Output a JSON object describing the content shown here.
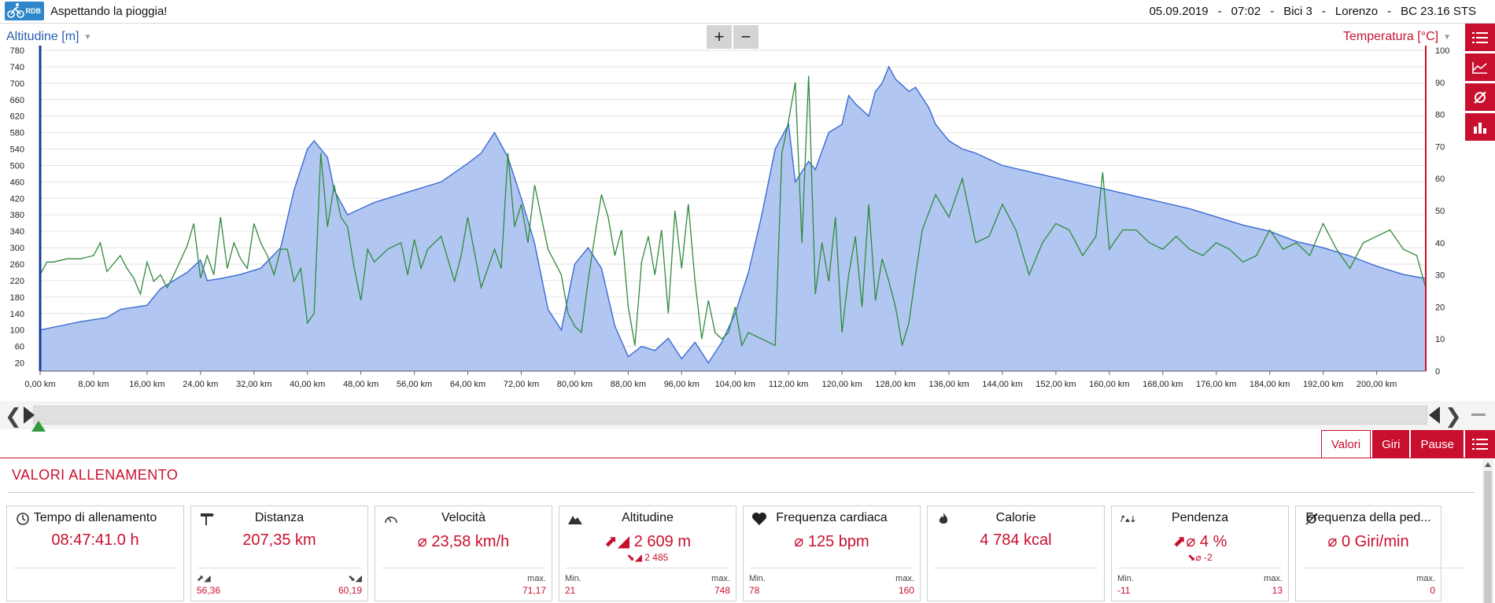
{
  "app": {
    "logo_text": "RDB",
    "title": "Aspettando la pioggia!",
    "session": {
      "date": "05.09.2019",
      "time": "07:02",
      "bike": "Bici 3",
      "user": "Lorenzo",
      "device": "BC 23.16 STS",
      "separator": "-"
    }
  },
  "chart": {
    "left_axis_title": "Altitudine [m]",
    "right_axis_title": "Temperatura [°C]",
    "zoom_in_label": "+",
    "zoom_out_label": "−",
    "colors": {
      "altitude_fill": "#a9c1f0",
      "altitude_line": "#3a6ad4",
      "temperature_line": "#2f8a3c",
      "left_axis": "#1a3c9c",
      "right_axis": "#c8102e"
    },
    "side_tools": [
      "list-icon",
      "line-chart-icon",
      "average-icon",
      "bar-chart-icon"
    ]
  },
  "chart_data": {
    "type": "line",
    "xlabel": "",
    "x_ticks": [
      "0,00 km",
      "8,00 km",
      "16,00 km",
      "24,00 km",
      "32,00 km",
      "40,00 km",
      "48,00 km",
      "56,00 km",
      "64,00 km",
      "72,00 km",
      "80,00 km",
      "88,00 km",
      "96,00 km",
      "104,00 km",
      "112,00 km",
      "120,00 km",
      "128,00 km",
      "136,00 km",
      "144,00 km",
      "152,00 km",
      "160,00 km",
      "168,00 km",
      "176,00 km",
      "184,00 km",
      "192,00 km",
      "200,00 km"
    ],
    "x_range": [
      0,
      207.35
    ],
    "y_left_ticks": [
      20,
      60,
      100,
      140,
      180,
      220,
      260,
      300,
      340,
      380,
      420,
      460,
      500,
      540,
      580,
      620,
      660,
      700,
      740,
      780
    ],
    "y_left_range": [
      0,
      780
    ],
    "y_right_ticks": [
      0,
      10,
      20,
      30,
      40,
      50,
      60,
      70,
      80,
      90,
      100
    ],
    "y_right_range": [
      0,
      100
    ],
    "grid": true,
    "series": [
      {
        "name": "Altitudine [m]",
        "axis": "left",
        "x": [
          0,
          3,
          6,
          10,
          12,
          16,
          18,
          20,
          22,
          24,
          25,
          27,
          30,
          33,
          36,
          38,
          40,
          41,
          43,
          44,
          46,
          48,
          50,
          52,
          56,
          60,
          64,
          66,
          68,
          70,
          72,
          74,
          76,
          78,
          80,
          82,
          84,
          86,
          88,
          90,
          92,
          94,
          96,
          98,
          100,
          102,
          104,
          106,
          108,
          110,
          112,
          113,
          115,
          116,
          118,
          120,
          121,
          122,
          124,
          125,
          126,
          127,
          128,
          130,
          131,
          133,
          134,
          136,
          138,
          140,
          144,
          148,
          152,
          156,
          160,
          164,
          168,
          172,
          176,
          180,
          184,
          188,
          192,
          196,
          200,
          204,
          207.35
        ],
        "y": [
          100,
          110,
          120,
          130,
          150,
          160,
          200,
          220,
          240,
          270,
          220,
          225,
          235,
          250,
          300,
          440,
          540,
          560,
          520,
          440,
          380,
          395,
          410,
          420,
          440,
          460,
          505,
          530,
          580,
          520,
          420,
          310,
          150,
          100,
          260,
          300,
          250,
          110,
          35,
          60,
          50,
          80,
          30,
          70,
          20,
          70,
          140,
          240,
          380,
          540,
          600,
          460,
          510,
          490,
          580,
          600,
          670,
          650,
          620,
          680,
          700,
          740,
          710,
          680,
          690,
          640,
          600,
          560,
          540,
          530,
          500,
          485,
          470,
          455,
          440,
          425,
          410,
          395,
          375,
          355,
          340,
          315,
          300,
          280,
          255,
          235,
          225
        ]
      },
      {
        "name": "Temperatura [°C]",
        "axis": "right",
        "x": [
          0,
          1,
          2,
          4,
          6,
          8,
          9,
          10,
          12,
          13,
          14,
          15,
          16,
          17,
          18,
          19,
          20,
          22,
          23,
          24,
          25,
          26,
          27,
          28,
          29,
          30,
          31,
          32,
          33,
          34,
          35,
          36,
          37,
          38,
          39,
          40,
          41,
          42,
          43,
          44,
          45,
          46,
          47,
          48,
          49,
          50,
          52,
          54,
          55,
          56,
          57,
          58,
          60,
          62,
          63,
          64,
          66,
          68,
          69,
          70,
          71,
          72,
          73,
          74,
          76,
          78,
          79,
          80,
          81,
          82,
          83,
          84,
          85,
          86,
          87,
          88,
          89,
          90,
          91,
          92,
          93,
          94,
          95,
          96,
          97,
          98,
          99,
          100,
          101,
          102,
          103,
          104,
          105,
          106,
          108,
          110,
          111,
          112,
          113,
          114,
          115,
          116,
          117,
          118,
          119,
          120,
          121,
          122,
          123,
          124,
          125,
          126,
          127,
          128,
          129,
          130,
          131,
          132,
          134,
          136,
          138,
          140,
          142,
          144,
          146,
          148,
          150,
          152,
          154,
          156,
          158,
          159,
          160,
          162,
          164,
          166,
          168,
          170,
          172,
          174,
          176,
          178,
          180,
          182,
          184,
          186,
          188,
          190,
          192,
          194,
          196,
          198,
          200,
          202,
          204,
          206,
          207.35
        ],
        "y": [
          30,
          34,
          34,
          35,
          35,
          36,
          40,
          31,
          36,
          32,
          29,
          24,
          34,
          28,
          30,
          26,
          30,
          39,
          46,
          29,
          36,
          30,
          48,
          32,
          40,
          35,
          32,
          46,
          40,
          36,
          30,
          38,
          38,
          28,
          32,
          15,
          18,
          68,
          45,
          58,
          48,
          45,
          32,
          22,
          38,
          34,
          38,
          40,
          30,
          41,
          32,
          38,
          42,
          28,
          36,
          48,
          26,
          38,
          32,
          68,
          45,
          52,
          40,
          58,
          38,
          30,
          18,
          14,
          12,
          28,
          42,
          55,
          48,
          36,
          44,
          20,
          8,
          34,
          42,
          30,
          44,
          18,
          50,
          32,
          52,
          28,
          10,
          22,
          12,
          10,
          12,
          20,
          8,
          12,
          10,
          8,
          68,
          78,
          90,
          40,
          92,
          24,
          40,
          28,
          48,
          12,
          30,
          42,
          20,
          52,
          22,
          35,
          28,
          20,
          8,
          15,
          30,
          44,
          55,
          48,
          60,
          40,
          42,
          52,
          44,
          30,
          40,
          46,
          44,
          36,
          42,
          62,
          38,
          44,
          44,
          40,
          38,
          42,
          38,
          36,
          40,
          38,
          34,
          36,
          44,
          38,
          40,
          36,
          46,
          38,
          32,
          40,
          42,
          44,
          38,
          36,
          26
        ]
      }
    ]
  },
  "scrubber": {
    "left_arrow": "❮",
    "right_arrow": "❯"
  },
  "tabs": [
    {
      "label": "Valori",
      "active": true
    },
    {
      "label": "Giri",
      "active": false
    },
    {
      "label": "Pause",
      "active": false
    }
  ],
  "section_title": "VALORI ALLENAMENTO",
  "cards": [
    {
      "icon": "clock-icon",
      "title": "Tempo di allenamento",
      "value": "08:47:41.0 h",
      "sub": "",
      "left_label": "",
      "left_value": "",
      "right_label": "",
      "right_value": ""
    },
    {
      "icon": "signpost-icon",
      "title": "Distanza",
      "value": "207,35 km",
      "sub": "",
      "left_label": "⬈◢",
      "left_value": "56,36",
      "right_label": "⬊◢",
      "right_value": "60,19"
    },
    {
      "icon": "speedometer-icon",
      "title": "Velocità",
      "value": "⌀ 23,58 km/h",
      "sub": "",
      "left_label": "",
      "left_value": "",
      "right_label": "max.",
      "right_value": "71,17"
    },
    {
      "icon": "mountain-icon",
      "title": "Altitudine",
      "value": "⬈◢ 2 609 m",
      "sub": "⬊◢ 2 485",
      "left_label": "Min.",
      "left_value": "21",
      "right_label": "max.",
      "right_value": "748"
    },
    {
      "icon": "heart-icon",
      "title": "Frequenza cardiaca",
      "value": "⌀ 125 bpm",
      "sub": "",
      "left_label": "Min.",
      "left_value": "78",
      "right_label": "max.",
      "right_value": "160"
    },
    {
      "icon": "flame-icon",
      "title": "Calorie",
      "value": "4 784 kcal",
      "sub": "",
      "left_label": "",
      "left_value": "",
      "right_label": "",
      "right_value": ""
    },
    {
      "icon": "slope-icon",
      "title": "Pendenza",
      "value": "⬈⌀ 4 %",
      "sub": "⬊⌀ -2",
      "left_label": "Min.",
      "left_value": "-11",
      "right_label": "max.",
      "right_value": "13"
    },
    {
      "icon": "cadence-icon",
      "title": "Frequenza della ped...",
      "value": "⌀ 0 Giri/min",
      "sub": "",
      "left_label": "",
      "left_value": "",
      "right_label": "max.",
      "right_value": "0"
    }
  ]
}
